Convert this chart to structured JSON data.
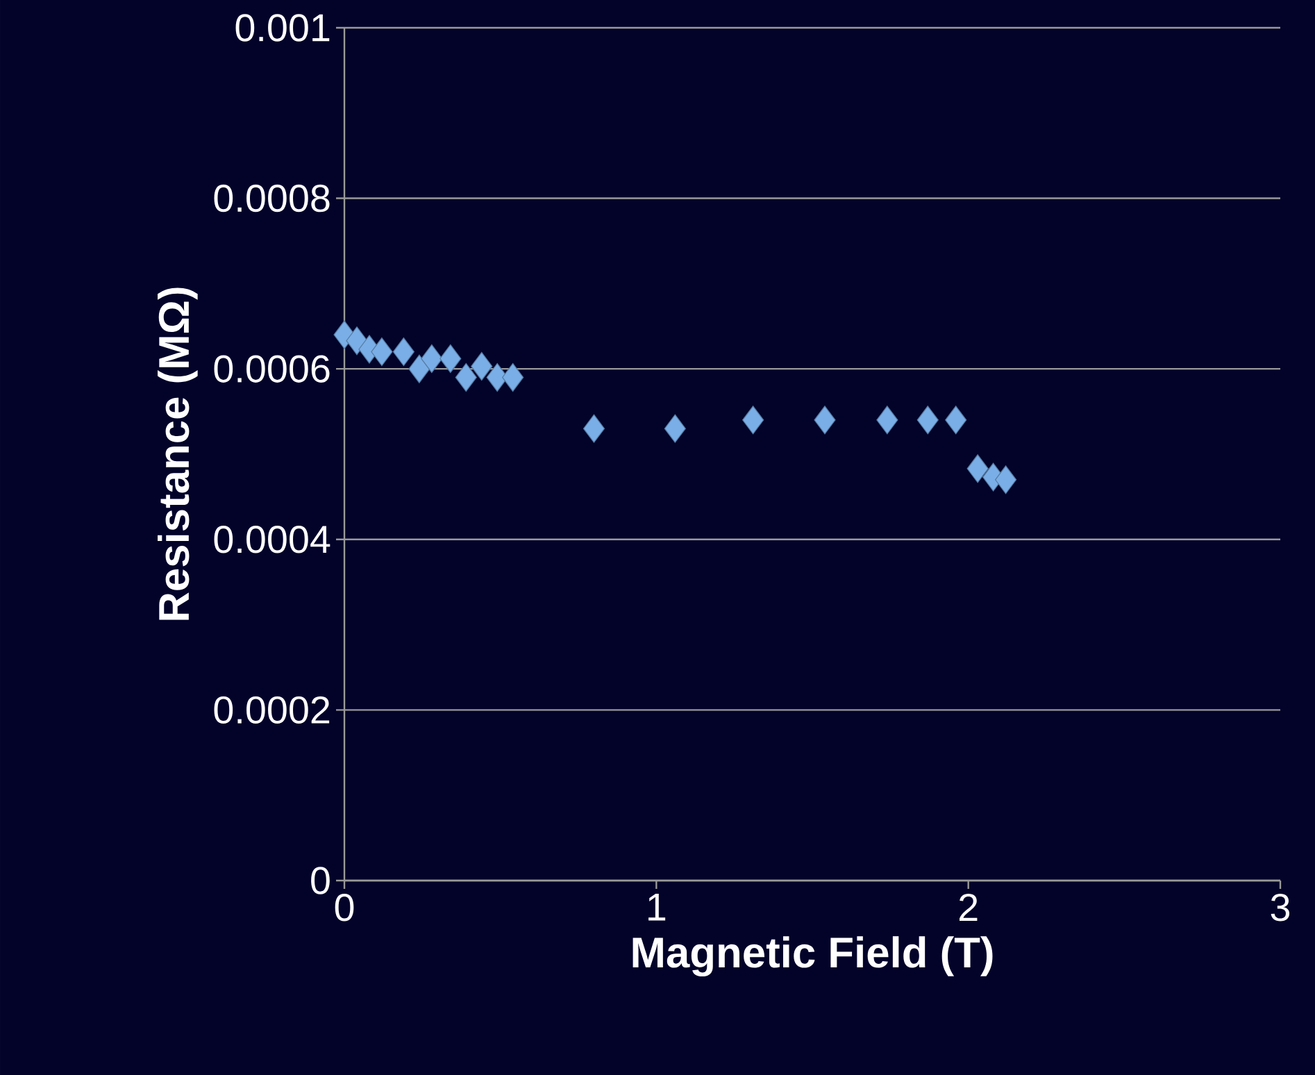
{
  "chart_data": {
    "type": "scatter",
    "xlabel": "Magnetic Field (T)",
    "ylabel": "Resistance (MΩ)",
    "x": [
      0,
      0.04,
      0.08,
      0.12,
      0.19,
      0.24,
      0.28,
      0.34,
      0.39,
      0.44,
      0.49,
      0.54,
      0.8,
      1.06,
      1.31,
      1.54,
      1.74,
      1.87,
      1.96,
      2.03,
      2.08,
      2.12
    ],
    "values": [
      0.00064,
      0.000633,
      0.000623,
      0.00062,
      0.00062,
      0.0006,
      0.000612,
      0.000612,
      0.00059,
      0.000603,
      0.00059,
      0.00059,
      0.00053,
      0.00053,
      0.00054,
      0.00054,
      0.00054,
      0.00054,
      0.00054,
      0.000483,
      0.000473,
      0.00047
    ],
    "color": "#7aaee6",
    "marker": "diamond",
    "grid": "y",
    "xlim": [
      0,
      3
    ],
    "xticks": [
      0,
      1,
      2,
      3
    ],
    "ylim": [
      0,
      0.001
    ],
    "yticks": [
      0,
      0.0002,
      0.0004,
      0.0006,
      0.0008,
      0.001
    ]
  }
}
